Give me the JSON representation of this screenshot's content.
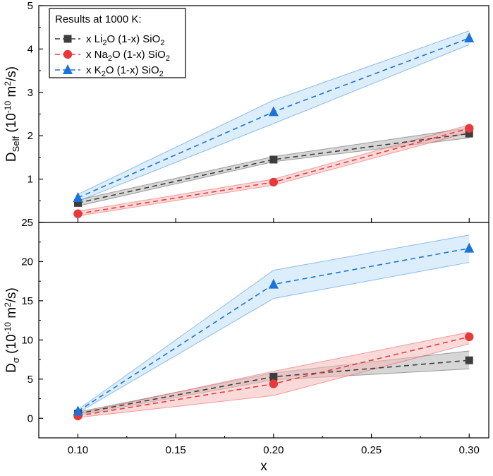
{
  "chart_data": {
    "type": "line",
    "x": [
      0.1,
      0.2,
      0.3
    ],
    "xlabel": "x",
    "xlim": [
      0.08,
      0.31
    ],
    "xticks": [
      "0.10",
      "0.15",
      "0.20",
      "0.25",
      "0.30"
    ],
    "xtick_values": [
      0.1,
      0.15,
      0.2,
      0.25,
      0.3
    ],
    "legend": {
      "title": "Results at 1000 K:",
      "placement": "top-left",
      "entries": [
        {
          "pre": "x Li",
          "sub1": "2",
          "mid": "O (1-x) SiO",
          "sub2": "2"
        },
        {
          "pre": "x Na",
          "sub1": "2",
          "mid": "O (1-x) SiO",
          "sub2": "2"
        },
        {
          "pre": "x K",
          "sub1": "2",
          "mid": "O (1-x) SiO",
          "sub2": "2"
        }
      ]
    },
    "panels": [
      {
        "name": "top",
        "ylabel": {
          "main": "D",
          "sub": "Self",
          "open": " (10",
          "exp": "-10",
          "unit": " m",
          "unit_exp": "2",
          "close": "/s)"
        },
        "ylim": [
          0,
          5
        ],
        "yticks": [
          "1",
          "2",
          "3",
          "4",
          "5"
        ],
        "ytick_values": [
          1,
          2,
          3,
          4,
          5
        ],
        "series": [
          {
            "name": "Li2O",
            "color": "#3d3d3d",
            "band": "#b4b4b4",
            "marker": "square",
            "values": [
              0.45,
              1.45,
              2.05
            ],
            "lower": [
              0.38,
              1.4,
              1.95
            ],
            "upper": [
              0.52,
              1.52,
              2.18
            ]
          },
          {
            "name": "Na2O",
            "color": "#e8393a",
            "band": "#f6b9b9",
            "marker": "circle",
            "values": [
              0.2,
              0.93,
              2.17
            ],
            "lower": [
              0.15,
              0.86,
              2.08
            ],
            "upper": [
              0.26,
              1.0,
              2.25
            ]
          },
          {
            "name": "K2O",
            "color": "#1a73d9",
            "band": "#bfe0f7",
            "marker": "triangle",
            "values": [
              0.57,
              2.55,
              4.25
            ],
            "lower": [
              0.49,
              2.28,
              4.1
            ],
            "upper": [
              0.65,
              2.82,
              4.42
            ]
          }
        ]
      },
      {
        "name": "bottom",
        "ylabel": {
          "main": "D",
          "sub": "σ",
          "open": " (10",
          "exp": "-10",
          "unit": " m",
          "unit_exp": "2",
          "close": "/s)"
        },
        "ylim": [
          -2.5,
          25
        ],
        "yticks": [
          "0",
          "5",
          "10",
          "15",
          "20",
          "25"
        ],
        "ytick_values": [
          0,
          5,
          10,
          15,
          20,
          25
        ],
        "series": [
          {
            "name": "Li2O",
            "color": "#3d3d3d",
            "band": "#b4b4b4",
            "marker": "square",
            "values": [
              0.6,
              5.3,
              7.4
            ],
            "lower": [
              0.4,
              4.9,
              6.3
            ],
            "upper": [
              0.8,
              5.8,
              8.6
            ]
          },
          {
            "name": "Na2O",
            "color": "#e8393a",
            "band": "#f6b9b9",
            "marker": "circle",
            "values": [
              0.3,
              4.4,
              10.4
            ],
            "lower": [
              0.1,
              2.9,
              9.5
            ],
            "upper": [
              0.6,
              6.0,
              11.0
            ]
          },
          {
            "name": "K2O",
            "color": "#1a73d9",
            "band": "#bfe0f7",
            "marker": "triangle",
            "values": [
              0.9,
              17.1,
              21.7
            ],
            "lower": [
              0.7,
              15.3,
              19.9
            ],
            "upper": [
              1.1,
              18.9,
              23.4
            ]
          }
        ]
      }
    ]
  }
}
